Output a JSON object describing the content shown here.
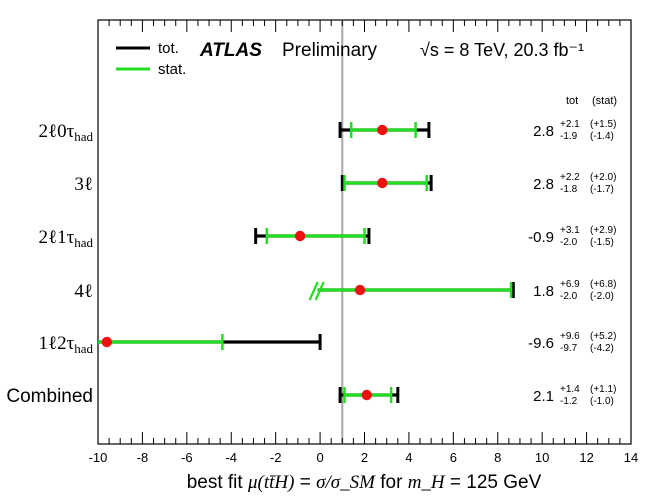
{
  "chart_data": {
    "type": "scatter",
    "subtype": "forest-plot",
    "title": "ATLAS Preliminary",
    "experiment": "ATLAS",
    "label": "Preliminary",
    "energy_label": "√s = 8 TeV, 20.3 fb⁻¹",
    "xlabel": "best fit μ(tt̄H) = σ/σ_SM for m_H = 125 GeV",
    "xlabel_parts": {
      "prefix": "best fit ",
      "mu": "μ(tt̄H)",
      "equals": " = ",
      "sigma_ratio": "σ/σ_SM",
      "for": " for ",
      "mh": "m_H",
      "suffix": " = 125 GeV"
    },
    "xlim": [
      -10,
      14
    ],
    "xticks": [
      -10,
      -8,
      -6,
      -4,
      -2,
      0,
      2,
      4,
      6,
      8,
      10,
      12,
      14
    ],
    "reference_line_x": 1,
    "legend": [
      {
        "name": "tot.",
        "color": "#000000"
      },
      {
        "name": "stat.",
        "color": "#22dd22"
      }
    ],
    "column_headers": {
      "tot": "tot",
      "stat": "(stat)"
    },
    "categories": [
      "2ℓ0τhad",
      "3ℓ",
      "2ℓ1τhad",
      "4ℓ",
      "1ℓ2τhad",
      "Combined"
    ],
    "category_labels": [
      {
        "main": "2ℓ0τ",
        "sub": "had"
      },
      {
        "main": "3ℓ",
        "sub": ""
      },
      {
        "main": "2ℓ1τ",
        "sub": "had"
      },
      {
        "main": "4ℓ",
        "sub": ""
      },
      {
        "main": "1ℓ2τ",
        "sub": "had"
      },
      {
        "main": "Combined",
        "sub": ""
      }
    ],
    "series": [
      {
        "name": "2ℓ0τhad",
        "value": 2.8,
        "tot_up": 2.1,
        "tot_down": 1.9,
        "stat_up": 1.5,
        "stat_down": 1.4,
        "value_text": "2.8",
        "tot_up_text": "+2.1",
        "tot_down_text": "-1.9",
        "stat_up_text": "(+1.5)",
        "stat_down_text": "(-1.4)"
      },
      {
        "name": "3ℓ",
        "value": 2.8,
        "tot_up": 2.2,
        "tot_down": 1.8,
        "stat_up": 2.0,
        "stat_down": 1.7,
        "value_text": "2.8",
        "tot_up_text": "+2.2",
        "tot_down_text": "-1.8",
        "stat_up_text": "(+2.0)",
        "stat_down_text": "(-1.7)"
      },
      {
        "name": "2ℓ1τhad",
        "value": -0.9,
        "tot_up": 3.1,
        "tot_down": 2.0,
        "stat_up": 2.9,
        "stat_down": 1.5,
        "value_text": "-0.9",
        "tot_up_text": "+3.1",
        "tot_down_text": "-2.0",
        "stat_up_text": "(+2.9)",
        "stat_down_text": "(-1.5)"
      },
      {
        "name": "4ℓ",
        "value": 1.8,
        "tot_up": 6.9,
        "tot_down": 2.0,
        "stat_up": 6.8,
        "stat_down": 2.0,
        "value_text": "1.8",
        "tot_up_text": "+6.9",
        "tot_down_text": "-2.0",
        "stat_up_text": "(+6.8)",
        "stat_down_text": "(-2.0)"
      },
      {
        "name": "1ℓ2τhad",
        "value": -9.6,
        "tot_up": 9.6,
        "tot_down": 9.7,
        "stat_up": 5.2,
        "stat_down": 4.2,
        "value_text": "-9.6",
        "tot_up_text": "+9.6",
        "tot_down_text": "-9.7",
        "stat_up_text": "(+5.2)",
        "stat_down_text": "(-4.2)"
      },
      {
        "name": "Combined",
        "value": 2.1,
        "tot_up": 1.4,
        "tot_down": 1.2,
        "stat_up": 1.1,
        "stat_down": 1.0,
        "value_text": "2.1",
        "tot_up_text": "+1.4",
        "tot_down_text": "-1.2",
        "stat_up_text": "(+1.1)",
        "stat_down_text": "(-1.0)"
      }
    ],
    "colors": {
      "tot": "#000000",
      "stat": "#22dd22",
      "point": "#ee1111",
      "reference": "#a6a6a6"
    }
  }
}
